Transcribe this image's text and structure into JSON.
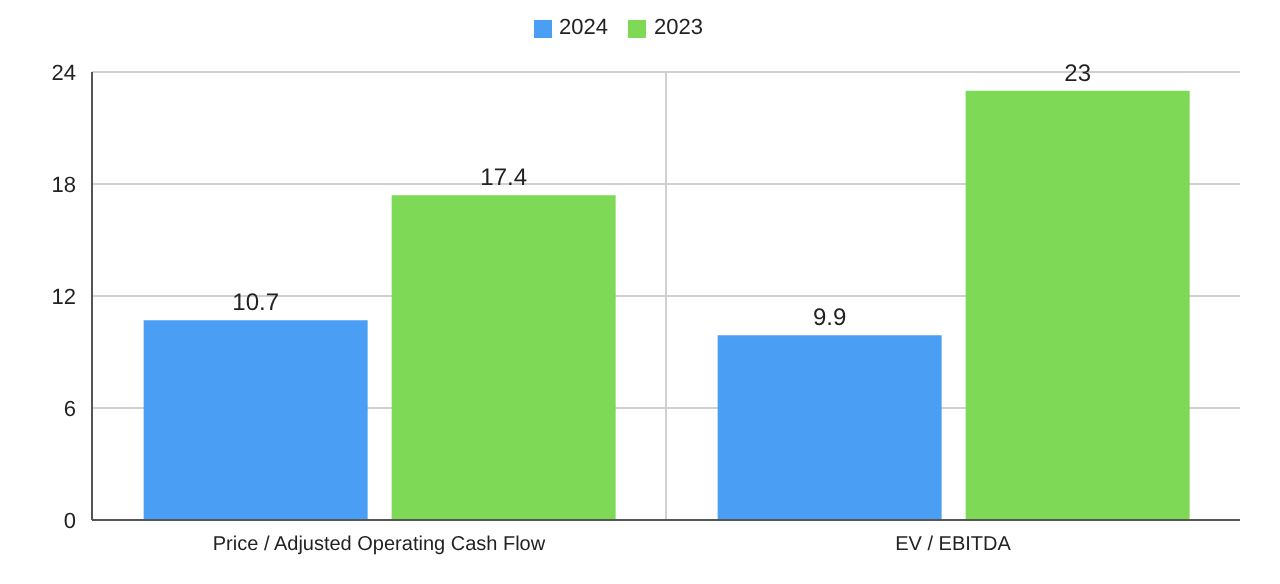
{
  "chart_data": {
    "type": "bar",
    "categories": [
      "Price / Adjusted Operating Cash Flow",
      "EV / EBITDA"
    ],
    "series": [
      {
        "name": "2024",
        "color": "#4a9ff5",
        "values": [
          10.7,
          9.9
        ]
      },
      {
        "name": "2023",
        "color": "#7ed957",
        "values": [
          17.4,
          23
        ]
      }
    ],
    "ylim": [
      0,
      24
    ],
    "yticks": [
      0,
      6,
      12,
      18,
      24
    ],
    "grid": true,
    "legend": "top",
    "data_labels": true
  }
}
